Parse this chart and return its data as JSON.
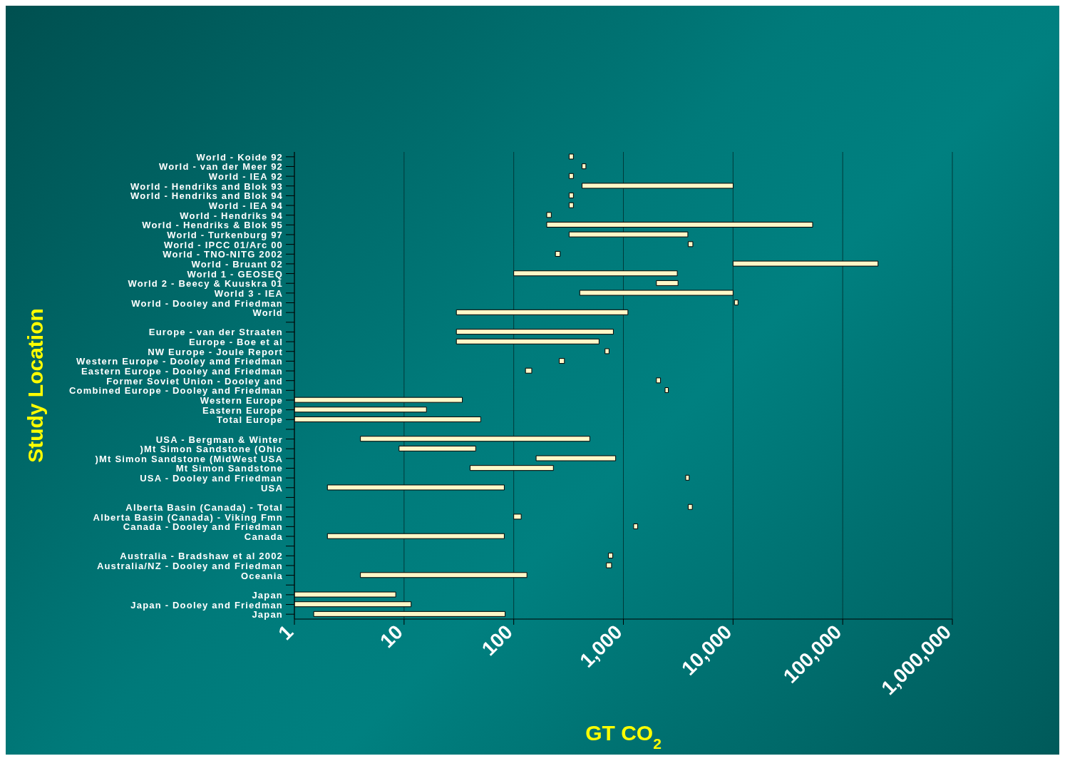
{
  "chart_data": {
    "type": "bar",
    "orientation": "horizontal",
    "xlabel": "GT CO$_{2}$",
    "ylabel": "Study Location",
    "color": "#fff8c8",
    "grid": "x",
    "log": "x",
    "xlim": [
      1,
      1000000
    ],
    "xticks": [
      1,
      10,
      100,
      {
        "value": 1000,
        "label": "1,000"
      },
      {
        "value": 10000,
        "label": "10,000"
      },
      {
        "value": 100000,
        "label": "100,000"
      },
      {
        "value": 1000000,
        "label": "1,000,000"
      }
    ],
    "categories": [
      "World - Koide 92",
      "World - van der Meer 92",
      "World - IEA 92",
      "World - Hendriks and Blok 93",
      "World - Hendriks and Blok 94",
      "World - IEA 94",
      "World - Hendriks 94",
      "World - Hendriks & Blok 95",
      "World - Turkenburg 97",
      "World - IPCC 01/Arc 00",
      "World - TNO-NITG 2002",
      "World - Bruant 02",
      "World 1 - GEOSEQ",
      "World 2 - Beecy & Kuuskra 01",
      "World 3 - IEA",
      "World - Dooley and Friedman",
      "World",
      null,
      "Europe - van der Straaten",
      "Europe - Boe et al",
      "NW Europe - Joule Report",
      "Western Europe - Dooley amd Friedman",
      "Eastern Europe - Dooley and Friedman",
      "Former Soviet Union - Dooley and",
      "Combined Europe - Dooley and Friedman",
      "Western Europe",
      "Eastern Europe",
      "Total Europe",
      null,
      "USA - Bergman & Winter",
      ")Mt Simon Sandstone (Ohio",
      ")Mt Simon Sandstone (MidWest USA",
      "Mt Simon Sandstone",
      "USA - Dooley and Friedman",
      "USA",
      null,
      "Alberta Basin (Canada) - Total",
      "Alberta Basin (Canada) - Viking Fmn",
      "Canada - Dooley and Friedman",
      "Canada",
      null,
      "Australia - Bradshaw et al 2002",
      "Australia/NZ - Dooley and Friedman",
      "Oceania",
      null,
      "Japan",
      "Japan - Dooley and Friedman",
      "Japan"
    ],
    "base": [
      320,
      420,
      320,
      420,
      320,
      320,
      200,
      200,
      320,
      3900,
      240,
      10000,
      100,
      2000,
      400,
      10300,
      30,
      null,
      30,
      30,
      680,
      260,
      128,
      2000,
      2400,
      1,
      1,
      1,
      null,
      4,
      9,
      160,
      40,
      3700,
      2,
      null,
      3900,
      100,
      1240,
      2,
      null,
      730,
      700,
      4,
      null,
      1,
      1,
      1.5
    ],
    "values": [
      30,
      35,
      30,
      9600,
      30,
      30,
      20,
      53000,
      3550,
      400,
      25,
      200000,
      3000,
      1150,
      9600,
      800,
      1070,
      null,
      780,
      570,
      60,
      30,
      18,
      180,
      170,
      33,
      15,
      49,
      null,
      490,
      36,
      690,
      190,
      280,
      80,
      null,
      350,
      17,
      110,
      80,
      null,
      70,
      80,
      128,
      null,
      7.4,
      10.6,
      82
    ]
  }
}
